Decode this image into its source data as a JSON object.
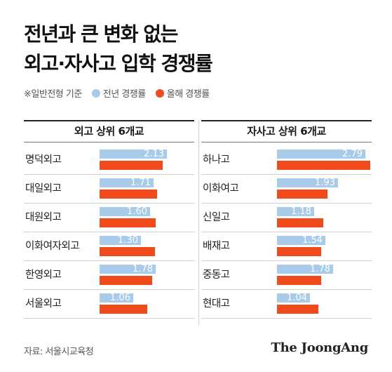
{
  "title_line1": "전년과 큰 변화 없는",
  "title_line2": "외고·자사고 입학 경쟁률",
  "legend": {
    "note": "※일반전형 기준",
    "prev_label": "전년 경쟁률",
    "curr_label": "올해 경쟁률",
    "prev_color": "#a8cbe9",
    "curr_color": "#f04a1d"
  },
  "source": "자료: 서울시교육청",
  "brand": "The JoongAng",
  "chart_data": [
    {
      "type": "bar",
      "orientation": "horizontal",
      "title": "외고 상위 6개교",
      "categories": [
        "명덕외고",
        "대일외고",
        "대원외고",
        "이화여자외고",
        "한영외고",
        "서울외고"
      ],
      "series": [
        {
          "name": "전년 경쟁률",
          "values": [
            2.13,
            1.71,
            1.6,
            1.3,
            1.78,
            1.06
          ]
        },
        {
          "name": "올해 경쟁률",
          "values": [
            1.99,
            1.83,
            1.78,
            1.76,
            1.67,
            1.51
          ]
        }
      ],
      "xlim": [
        0,
        3.0
      ]
    },
    {
      "type": "bar",
      "orientation": "horizontal",
      "title": "자사고 상위 6개교",
      "categories": [
        "하나고",
        "이화여고",
        "신일고",
        "배재고",
        "중동고",
        "현대고"
      ],
      "series": [
        {
          "name": "전년 경쟁률",
          "values": [
            2.79,
            1.93,
            1.18,
            1.54,
            1.78,
            1.04
          ]
        },
        {
          "name": "올해 경쟁률",
          "values": [
            2.96,
            1.59,
            1.46,
            1.41,
            1.4,
            1.32
          ]
        }
      ],
      "xlim": [
        0,
        3.0
      ]
    }
  ]
}
